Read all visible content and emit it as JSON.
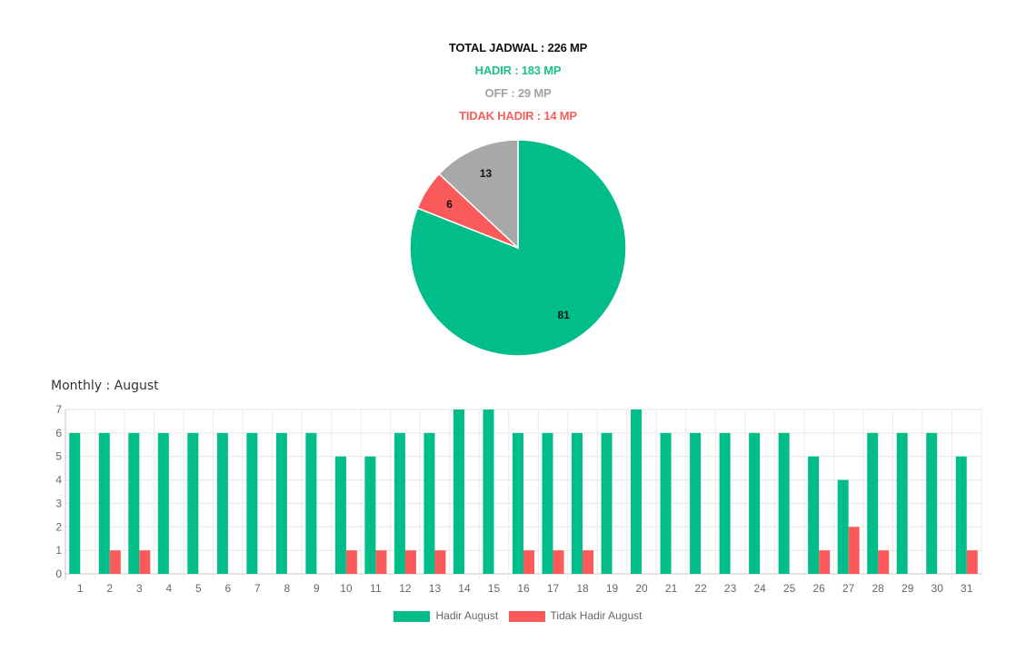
{
  "summary": {
    "total": "TOTAL JADWAL : 226 MP",
    "hadir": "HADIR : 183 MP",
    "off": "OFF : 29 MP",
    "tidak_hadir": "TIDAK HADIR : 14 MP"
  },
  "colors": {
    "hadir": "#00bd8a",
    "tidak_hadir": "#fb5a5a",
    "off": "#a8a8a8"
  },
  "monthly_label": "Monthly : August",
  "chart_data": [
    {
      "type": "pie",
      "slices": [
        {
          "label": "",
          "value": 81,
          "color": "#00bd8a"
        },
        {
          "label": "",
          "value": 6,
          "color": "#fb5a5a"
        },
        {
          "label": "",
          "value": 13,
          "color": "#a8a8a8"
        }
      ],
      "data_labels": true
    },
    {
      "type": "bar",
      "categories": [
        "1",
        "2",
        "3",
        "4",
        "5",
        "6",
        "7",
        "8",
        "9",
        "10",
        "11",
        "12",
        "13",
        "14",
        "15",
        "16",
        "17",
        "18",
        "19",
        "20",
        "21",
        "22",
        "23",
        "24",
        "25",
        "26",
        "27",
        "28",
        "29",
        "30",
        "31"
      ],
      "series": [
        {
          "name": "Hadir August",
          "color": "#00bd8a",
          "values": [
            6,
            6,
            6,
            6,
            6,
            6,
            6,
            6,
            6,
            5,
            5,
            6,
            6,
            7,
            7,
            6,
            6,
            6,
            6,
            7,
            6,
            6,
            6,
            6,
            6,
            5,
            4,
            6,
            6,
            6,
            5
          ]
        },
        {
          "name": "Tidak Hadir August",
          "color": "#fb5a5a",
          "values": [
            0,
            1,
            1,
            0,
            0,
            0,
            0,
            0,
            0,
            1,
            1,
            1,
            1,
            0,
            0,
            1,
            1,
            1,
            0,
            0,
            0,
            0,
            0,
            0,
            0,
            1,
            2,
            1,
            0,
            0,
            1
          ]
        }
      ],
      "ylim": [
        0,
        7
      ],
      "yticks": [
        0,
        1,
        2,
        3,
        4,
        5,
        6,
        7
      ],
      "grid": true,
      "legend": "bottom"
    }
  ]
}
